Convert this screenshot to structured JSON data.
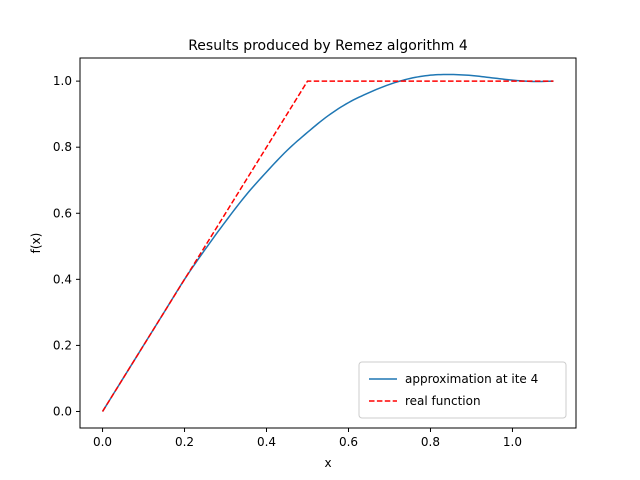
{
  "chart_data": {
    "type": "line",
    "title": "Results produced by Remez algorithm  4",
    "xlabel": "x",
    "ylabel": "f(x)",
    "xlim": [
      -0.055,
      1.155
    ],
    "ylim": [
      -0.05,
      1.07
    ],
    "xticks": [
      0.0,
      0.2,
      0.4,
      0.6,
      0.8,
      1.0
    ],
    "xtick_labels": [
      "0.0",
      "0.2",
      "0.4",
      "0.6",
      "0.8",
      "1.0"
    ],
    "yticks": [
      0.0,
      0.2,
      0.4,
      0.6,
      0.8,
      1.0
    ],
    "ytick_labels": [
      "0.0",
      "0.2",
      "0.4",
      "0.6",
      "0.8",
      "1.0"
    ],
    "grid": false,
    "legend_position": "lower-right",
    "series": [
      {
        "name": "approximation at ite 4",
        "color": "#1f77b4",
        "style": "solid",
        "x": [
          0.0,
          0.05,
          0.1,
          0.15,
          0.2,
          0.25,
          0.3,
          0.35,
          0.4,
          0.45,
          0.5,
          0.55,
          0.6,
          0.65,
          0.7,
          0.75,
          0.8,
          0.85,
          0.9,
          0.95,
          1.0,
          1.05,
          1.1
        ],
        "y": [
          0.0,
          0.1,
          0.2,
          0.3,
          0.4,
          0.49,
          0.575,
          0.655,
          0.725,
          0.79,
          0.845,
          0.895,
          0.935,
          0.965,
          0.99,
          1.008,
          1.018,
          1.02,
          1.017,
          1.01,
          1.003,
          0.999,
          1.0
        ]
      },
      {
        "name": "real function",
        "color": "#ff0000",
        "style": "dashed",
        "x": [
          0.0,
          0.5,
          1.1
        ],
        "y": [
          0.0,
          1.0,
          1.0
        ]
      }
    ]
  }
}
